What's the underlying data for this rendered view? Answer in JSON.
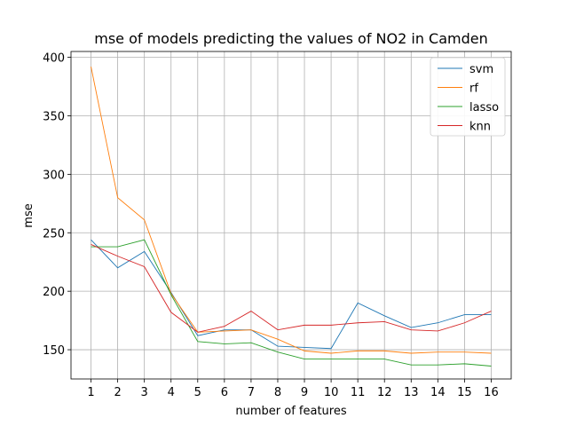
{
  "chart_data": {
    "type": "line",
    "title": "mse of models predicting the values of NO2 in Camden",
    "xlabel": "number of features",
    "ylabel": "mse",
    "x": [
      1,
      2,
      3,
      4,
      5,
      6,
      7,
      8,
      9,
      10,
      11,
      12,
      13,
      14,
      15,
      16
    ],
    "xlim": [
      0.25,
      16.75
    ],
    "ylim": [
      125,
      405
    ],
    "yticks": [
      150,
      200,
      250,
      300,
      350,
      400
    ],
    "grid": true,
    "legend_position": "upper-right",
    "series": [
      {
        "name": "svm",
        "color": "#1f77b4",
        "values": [
          244,
          220,
          234,
          199,
          162,
          167,
          167,
          153,
          152,
          151,
          190,
          179,
          169,
          173,
          180,
          180
        ]
      },
      {
        "name": "rf",
        "color": "#ff7f0e",
        "values": [
          392,
          280,
          261,
          198,
          165,
          166,
          167,
          159,
          149,
          147,
          149,
          149,
          147,
          148,
          148,
          147
        ]
      },
      {
        "name": "lasso",
        "color": "#2ca02c",
        "values": [
          238,
          238,
          244,
          197,
          157,
          155,
          156,
          148,
          142,
          142,
          142,
          142,
          137,
          137,
          138,
          136
        ]
      },
      {
        "name": "knn",
        "color": "#d62728",
        "values": [
          240,
          230,
          221,
          182,
          165,
          170,
          183,
          167,
          171,
          171,
          173,
          174,
          167,
          166,
          173,
          183
        ]
      }
    ]
  }
}
